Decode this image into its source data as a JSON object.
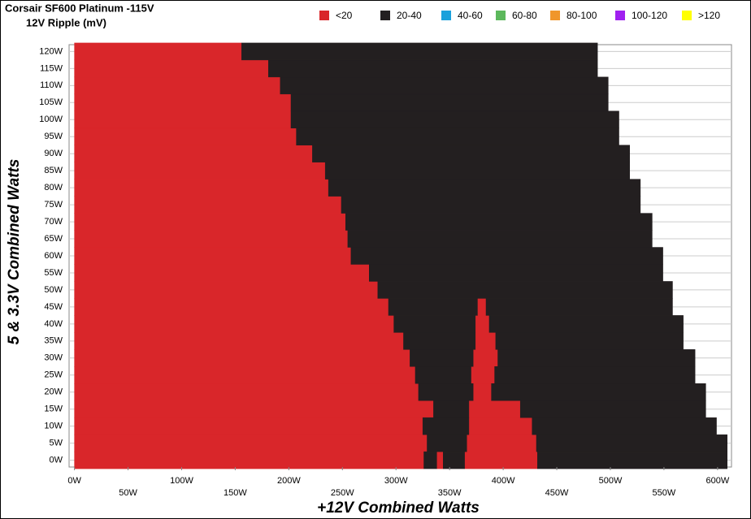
{
  "chart_data": {
    "type": "region-map",
    "title": "Corsair SF600 Platinum -115V",
    "subtitle": "12V Ripple (mV)",
    "x_label": "+12V Combined Watts",
    "y_label": "5 & 3.3V Combined Watts",
    "xlim": [
      -5,
      613
    ],
    "ylim": [
      -2,
      122
    ],
    "band_height": 5,
    "grid": true,
    "xticks": [
      {
        "value": 0,
        "label": "0W"
      },
      {
        "value": 50,
        "label": "50W"
      },
      {
        "value": 100,
        "label": "100W"
      },
      {
        "value": 150,
        "label": "150W"
      },
      {
        "value": 200,
        "label": "200W"
      },
      {
        "value": 250,
        "label": "250W"
      },
      {
        "value": 300,
        "label": "300W"
      },
      {
        "value": 350,
        "label": "350W"
      },
      {
        "value": 400,
        "label": "400W"
      },
      {
        "value": 450,
        "label": "450W"
      },
      {
        "value": 500,
        "label": "500W"
      },
      {
        "value": 550,
        "label": "550W"
      },
      {
        "value": 600,
        "label": "600W"
      }
    ],
    "yticks": [
      {
        "value": 0,
        "label": "0W"
      },
      {
        "value": 5,
        "label": "5W"
      },
      {
        "value": 10,
        "label": "10W"
      },
      {
        "value": 15,
        "label": "15W"
      },
      {
        "value": 20,
        "label": "20W"
      },
      {
        "value": 25,
        "label": "25W"
      },
      {
        "value": 30,
        "label": "30W"
      },
      {
        "value": 35,
        "label": "35W"
      },
      {
        "value": 40,
        "label": "40W"
      },
      {
        "value": 45,
        "label": "45W"
      },
      {
        "value": 50,
        "label": "50W"
      },
      {
        "value": 55,
        "label": "55W"
      },
      {
        "value": 60,
        "label": "60W"
      },
      {
        "value": 65,
        "label": "65W"
      },
      {
        "value": 70,
        "label": "70W"
      },
      {
        "value": 75,
        "label": "75W"
      },
      {
        "value": 80,
        "label": "80W"
      },
      {
        "value": 85,
        "label": "85W"
      },
      {
        "value": 90,
        "label": "90W"
      },
      {
        "value": 95,
        "label": "95W"
      },
      {
        "value": 100,
        "label": "100W"
      },
      {
        "value": 105,
        "label": "105W"
      },
      {
        "value": 110,
        "label": "110W"
      },
      {
        "value": 115,
        "label": "115W"
      },
      {
        "value": 120,
        "label": "120W"
      }
    ],
    "series": [
      {
        "name": "<20",
        "color": "#d9262a",
        "segments": [
          [
            120,
            0,
            156
          ],
          [
            115,
            0,
            181
          ],
          [
            110,
            0,
            192
          ],
          [
            105,
            0,
            202
          ],
          [
            100,
            0,
            202
          ],
          [
            95,
            0,
            207
          ],
          [
            90,
            0,
            222
          ],
          [
            85,
            0,
            234
          ],
          [
            80,
            0,
            237
          ],
          [
            75,
            0,
            249
          ],
          [
            70,
            0,
            253
          ],
          [
            65,
            0,
            255
          ],
          [
            60,
            0,
            258
          ],
          [
            55,
            0,
            275
          ],
          [
            50,
            0,
            283
          ],
          [
            45,
            0,
            293
          ],
          [
            40,
            0,
            298
          ],
          [
            35,
            0,
            307
          ],
          [
            30,
            0,
            313
          ],
          [
            25,
            0,
            318
          ],
          [
            20,
            0,
            321
          ],
          [
            15,
            0,
            335
          ],
          [
            10,
            0,
            325
          ],
          [
            5,
            0,
            329
          ],
          [
            0,
            0,
            326
          ],
          [
            45,
            376,
            384
          ],
          [
            40,
            374,
            387
          ],
          [
            35,
            374,
            393
          ],
          [
            30,
            372,
            395
          ],
          [
            25,
            370,
            392
          ],
          [
            20,
            372,
            389
          ],
          [
            15,
            368,
            416
          ],
          [
            10,
            368,
            427
          ],
          [
            5,
            366,
            431
          ],
          [
            0,
            364,
            432
          ],
          [
            0,
            338,
            344
          ]
        ]
      },
      {
        "name": "20-40",
        "color": "#231f20",
        "segments": [
          [
            120,
            156,
            488
          ],
          [
            115,
            181,
            488
          ],
          [
            110,
            192,
            498
          ],
          [
            105,
            202,
            498
          ],
          [
            100,
            202,
            508
          ],
          [
            95,
            207,
            508
          ],
          [
            90,
            222,
            518
          ],
          [
            85,
            234,
            518
          ],
          [
            80,
            237,
            528
          ],
          [
            75,
            249,
            528
          ],
          [
            70,
            253,
            539
          ],
          [
            65,
            255,
            539
          ],
          [
            60,
            258,
            549
          ],
          [
            55,
            275,
            549
          ],
          [
            50,
            283,
            558
          ],
          [
            45,
            293,
            376
          ],
          [
            45,
            384,
            558
          ],
          [
            40,
            298,
            374
          ],
          [
            40,
            387,
            568
          ],
          [
            35,
            307,
            374
          ],
          [
            35,
            393,
            568
          ],
          [
            30,
            313,
            372
          ],
          [
            30,
            395,
            579
          ],
          [
            25,
            318,
            370
          ],
          [
            25,
            392,
            579
          ],
          [
            20,
            321,
            372
          ],
          [
            20,
            389,
            589
          ],
          [
            15,
            335,
            368
          ],
          [
            15,
            416,
            589
          ],
          [
            10,
            325,
            368
          ],
          [
            10,
            427,
            599
          ],
          [
            5,
            329,
            366
          ],
          [
            5,
            431,
            609
          ],
          [
            0,
            326,
            338
          ],
          [
            0,
            344,
            364
          ],
          [
            0,
            432,
            609
          ]
        ]
      },
      {
        "name": "40-60",
        "color": "#1ba1dc",
        "segments": []
      },
      {
        "name": "60-80",
        "color": "#5cb85c",
        "segments": []
      },
      {
        "name": "80-100",
        "color": "#f0962b",
        "segments": []
      },
      {
        "name": "100-120",
        "color": "#a020f0",
        "segments": []
      },
      {
        "name": ">120",
        "color": "#ffff00",
        "segments": []
      }
    ]
  }
}
